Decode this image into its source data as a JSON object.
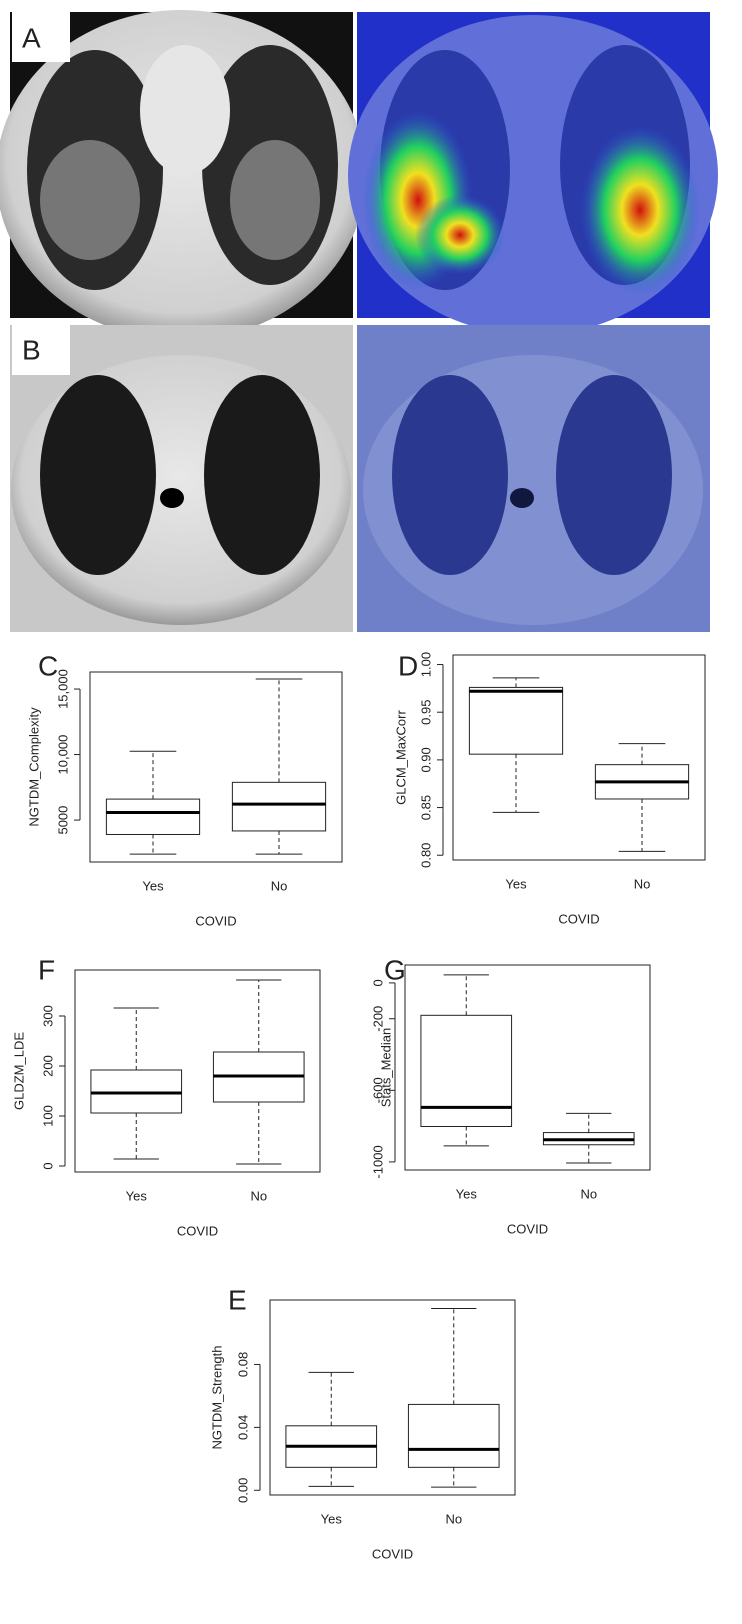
{
  "panels": [
    {
      "label": "A"
    },
    {
      "label": "B"
    }
  ],
  "chart_data": [
    {
      "type": "box",
      "panel": "C",
      "ylabel": "NGTDM_Complexity",
      "xlabel": "COVID",
      "categories": [
        "Yes",
        "No"
      ],
      "min": [
        2400,
        2400
      ],
      "q1": [
        3900,
        4170
      ],
      "median": [
        5580,
        6220
      ],
      "q3": [
        6600,
        7880
      ],
      "max": [
        10250,
        15770
      ],
      "ylim": [
        1800,
        16300
      ],
      "yticks": [
        5000,
        {
          "value": 10000,
          "label": "10,000"
        },
        {
          "value": 15000,
          "label": "15,000"
        }
      ]
    },
    {
      "type": "box",
      "panel": "D",
      "ylabel": "GLCM_MaxCorr",
      "xlabel": "COVID",
      "categories": [
        "Yes",
        "No"
      ],
      "min": [
        0.845,
        0.804
      ],
      "q1": [
        0.906,
        0.859
      ],
      "median": [
        0.972,
        0.877
      ],
      "q3": [
        0.976,
        0.895
      ],
      "max": [
        0.986,
        0.917
      ],
      "ylim": [
        0.795,
        1.01
      ],
      "yticks": [
        {
          "value": 0.8,
          "label": "0.80"
        },
        0.85,
        {
          "value": 0.9,
          "label": "0.90"
        },
        0.95,
        {
          "value": 1,
          "label": "1.00"
        }
      ]
    },
    {
      "type": "box",
      "panel": "F",
      "ylabel": "GLDZM_LDE",
      "xlabel": "COVID",
      "categories": [
        "Yes",
        "No"
      ],
      "min": [
        14,
        4
      ],
      "q1": [
        106,
        128
      ],
      "median": [
        146,
        180
      ],
      "q3": [
        192,
        228
      ],
      "max": [
        316,
        372
      ],
      "ylim": [
        -12,
        392
      ],
      "yticks": [
        0,
        100,
        200,
        300
      ]
    },
    {
      "type": "box",
      "panel": "G",
      "ylabel": "Stats_Median",
      "xlabel": "COVID",
      "categories": [
        "Yes",
        "No"
      ],
      "min": [
        -910,
        -1006
      ],
      "q1": [
        -802,
        -904
      ],
      "median": [
        -695,
        -876
      ],
      "q3": [
        -181,
        -836
      ],
      "max": [
        45,
        -729
      ],
      "ylim": [
        -1045,
        100
      ],
      "yticks": [
        0,
        -200,
        -600,
        -1000
      ]
    },
    {
      "type": "box",
      "panel": "E",
      "ylabel": "NGTDM_Strength",
      "xlabel": "COVID",
      "categories": [
        "Yes",
        "No"
      ],
      "min": [
        0.0025,
        0.002
      ],
      "q1": [
        0.0146,
        0.0146
      ],
      "median": [
        0.028,
        0.026
      ],
      "q3": [
        0.041,
        0.0546
      ],
      "max": [
        0.075,
        0.1156
      ],
      "ylim": [
        -0.003,
        0.121
      ],
      "yticks": [
        {
          "value": 0,
          "label": "0.00"
        },
        0.04,
        0.08
      ]
    }
  ]
}
